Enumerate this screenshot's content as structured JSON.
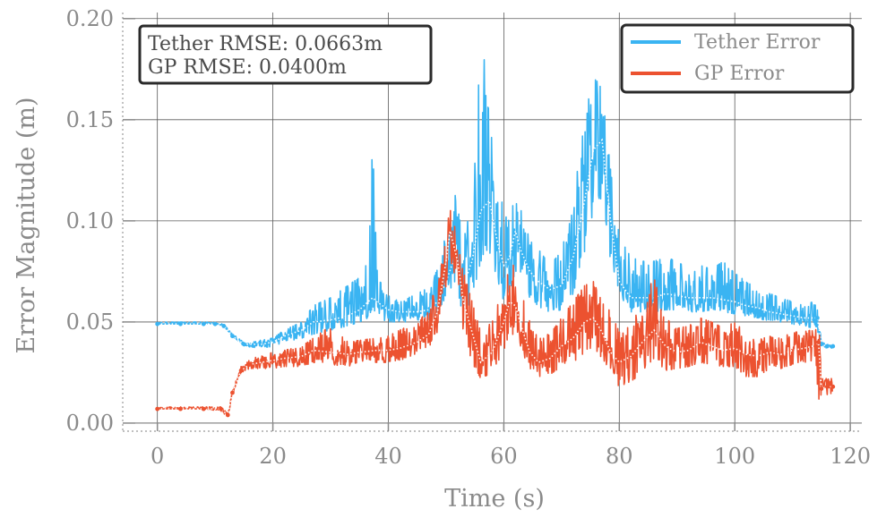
{
  "chart_data": {
    "type": "line",
    "title": "",
    "xlabel": "Time (s)",
    "ylabel": "Error Magnitude (m)",
    "xlim": [
      -6,
      122
    ],
    "ylim": [
      -0.004,
      0.203
    ],
    "xticks": [
      0,
      20,
      40,
      60,
      80,
      100,
      120
    ],
    "yticks": [
      0.0,
      0.05,
      0.1,
      0.15,
      0.2
    ],
    "xtick_labels": [
      "0",
      "20",
      "40",
      "60",
      "80",
      "100",
      "120"
    ],
    "ytick_labels": [
      "0.00",
      "0.05",
      "0.10",
      "0.15",
      "0.20"
    ],
    "grid": true,
    "legend_position": "top-right",
    "annotation": [
      "Tether RMSE: 0.0663m",
      "GP RMSE: 0.0400m"
    ],
    "series": [
      {
        "name": "Tether Error",
        "color": "#3ab4f2",
        "mean_color": "#ffffff",
        "x": [
          0,
          4,
          8,
          10,
          11.5,
          13,
          15,
          18,
          20,
          22,
          25,
          27,
          30,
          33,
          35,
          36.5,
          37.3,
          38,
          40,
          42,
          45,
          47,
          48.5,
          50,
          51.5,
          53,
          54.5,
          56,
          57.5,
          59,
          60,
          61,
          62,
          63,
          64.5,
          66,
          68,
          70,
          72,
          74,
          75.5,
          77,
          78.5,
          80,
          82,
          84,
          86,
          88,
          90,
          92,
          94,
          96,
          98,
          100,
          102,
          104,
          106,
          108,
          110,
          112,
          113.5,
          114.3,
          115,
          116,
          117
        ],
        "mean": [
          0.049,
          0.049,
          0.049,
          0.049,
          0.048,
          0.043,
          0.039,
          0.039,
          0.04,
          0.043,
          0.046,
          0.05,
          0.051,
          0.053,
          0.056,
          0.06,
          0.062,
          0.06,
          0.056,
          0.055,
          0.055,
          0.056,
          0.06,
          0.07,
          0.082,
          0.068,
          0.08,
          0.105,
          0.11,
          0.088,
          0.078,
          0.082,
          0.095,
          0.085,
          0.075,
          0.07,
          0.066,
          0.068,
          0.082,
          0.11,
          0.135,
          0.14,
          0.1,
          0.07,
          0.062,
          0.062,
          0.062,
          0.064,
          0.063,
          0.062,
          0.062,
          0.062,
          0.061,
          0.06,
          0.058,
          0.057,
          0.055,
          0.054,
          0.053,
          0.052,
          0.052,
          0.052,
          0.039,
          0.038,
          0.038
        ],
        "low": [
          0.049,
          0.049,
          0.049,
          0.049,
          0.048,
          0.043,
          0.038,
          0.037,
          0.038,
          0.04,
          0.042,
          0.044,
          0.046,
          0.048,
          0.05,
          0.052,
          0.055,
          0.052,
          0.05,
          0.05,
          0.05,
          0.051,
          0.054,
          0.06,
          0.07,
          0.053,
          0.062,
          0.08,
          0.085,
          0.07,
          0.06,
          0.065,
          0.075,
          0.068,
          0.062,
          0.057,
          0.055,
          0.056,
          0.064,
          0.085,
          0.105,
          0.112,
          0.08,
          0.06,
          0.055,
          0.055,
          0.055,
          0.056,
          0.056,
          0.055,
          0.055,
          0.056,
          0.055,
          0.054,
          0.053,
          0.052,
          0.05,
          0.05,
          0.049,
          0.048,
          0.047,
          0.046,
          0.038,
          0.037,
          0.037
        ],
        "high": [
          0.05,
          0.05,
          0.05,
          0.05,
          0.049,
          0.044,
          0.04,
          0.041,
          0.042,
          0.046,
          0.05,
          0.058,
          0.062,
          0.068,
          0.072,
          0.08,
          0.14,
          0.076,
          0.063,
          0.06,
          0.064,
          0.067,
          0.076,
          0.095,
          0.115,
          0.09,
          0.11,
          0.2,
          0.15,
          0.118,
          0.105,
          0.1,
          0.115,
          0.105,
          0.095,
          0.086,
          0.078,
          0.085,
          0.11,
          0.15,
          0.172,
          0.165,
          0.125,
          0.092,
          0.082,
          0.08,
          0.08,
          0.082,
          0.08,
          0.076,
          0.078,
          0.076,
          0.08,
          0.074,
          0.07,
          0.066,
          0.064,
          0.062,
          0.06,
          0.058,
          0.06,
          0.064,
          0.04,
          0.039,
          0.038
        ]
      },
      {
        "name": "GP Error",
        "color": "#ec5230",
        "mean_color": "#ffffff",
        "x": [
          0,
          4,
          8,
          11,
          12.2,
          13,
          14.5,
          16,
          18,
          20,
          22,
          25,
          27,
          30,
          33,
          35,
          38,
          40,
          42,
          45,
          47,
          48.5,
          50,
          50.7,
          52,
          53,
          54.5,
          56,
          58,
          60,
          61,
          62,
          63,
          64.5,
          66,
          68,
          70,
          72,
          74,
          75.5,
          77,
          78.5,
          80,
          82,
          84,
          86,
          88,
          90,
          92,
          94,
          96,
          98,
          100,
          102,
          104,
          106,
          108,
          110,
          112,
          113.5,
          114,
          114.5,
          115,
          116,
          117
        ],
        "mean": [
          0.007,
          0.007,
          0.007,
          0.007,
          0.004,
          0.015,
          0.026,
          0.029,
          0.03,
          0.031,
          0.032,
          0.033,
          0.036,
          0.035,
          0.034,
          0.035,
          0.036,
          0.036,
          0.037,
          0.04,
          0.044,
          0.055,
          0.08,
          0.095,
          0.08,
          0.06,
          0.045,
          0.03,
          0.035,
          0.05,
          0.06,
          0.058,
          0.048,
          0.035,
          0.03,
          0.032,
          0.038,
          0.042,
          0.05,
          0.052,
          0.045,
          0.035,
          0.03,
          0.033,
          0.04,
          0.046,
          0.038,
          0.035,
          0.036,
          0.04,
          0.038,
          0.036,
          0.037,
          0.034,
          0.033,
          0.035,
          0.034,
          0.036,
          0.037,
          0.038,
          0.038,
          0.04,
          0.017,
          0.018,
          0.018
        ],
        "low": [
          0.007,
          0.007,
          0.007,
          0.006,
          0.003,
          0.014,
          0.025,
          0.027,
          0.027,
          0.027,
          0.028,
          0.028,
          0.03,
          0.029,
          0.028,
          0.03,
          0.03,
          0.03,
          0.031,
          0.034,
          0.037,
          0.045,
          0.068,
          0.082,
          0.065,
          0.045,
          0.03,
          0.022,
          0.025,
          0.036,
          0.045,
          0.043,
          0.033,
          0.025,
          0.023,
          0.024,
          0.028,
          0.03,
          0.035,
          0.038,
          0.032,
          0.023,
          0.018,
          0.02,
          0.026,
          0.032,
          0.026,
          0.027,
          0.028,
          0.03,
          0.029,
          0.028,
          0.028,
          0.023,
          0.023,
          0.027,
          0.027,
          0.029,
          0.03,
          0.031,
          0.03,
          0.012,
          0.011,
          0.014,
          0.015
        ],
        "high": [
          0.008,
          0.008,
          0.008,
          0.008,
          0.005,
          0.016,
          0.028,
          0.032,
          0.033,
          0.035,
          0.036,
          0.038,
          0.042,
          0.048,
          0.04,
          0.041,
          0.042,
          0.043,
          0.046,
          0.05,
          0.057,
          0.07,
          0.095,
          0.108,
          0.09,
          0.075,
          0.06,
          0.045,
          0.05,
          0.068,
          0.085,
          0.075,
          0.065,
          0.05,
          0.043,
          0.044,
          0.052,
          0.06,
          0.068,
          0.07,
          0.06,
          0.055,
          0.045,
          0.048,
          0.06,
          0.072,
          0.052,
          0.047,
          0.048,
          0.052,
          0.05,
          0.047,
          0.05,
          0.044,
          0.041,
          0.043,
          0.042,
          0.045,
          0.045,
          0.047,
          0.05,
          0.062,
          0.022,
          0.022,
          0.022
        ]
      }
    ]
  }
}
